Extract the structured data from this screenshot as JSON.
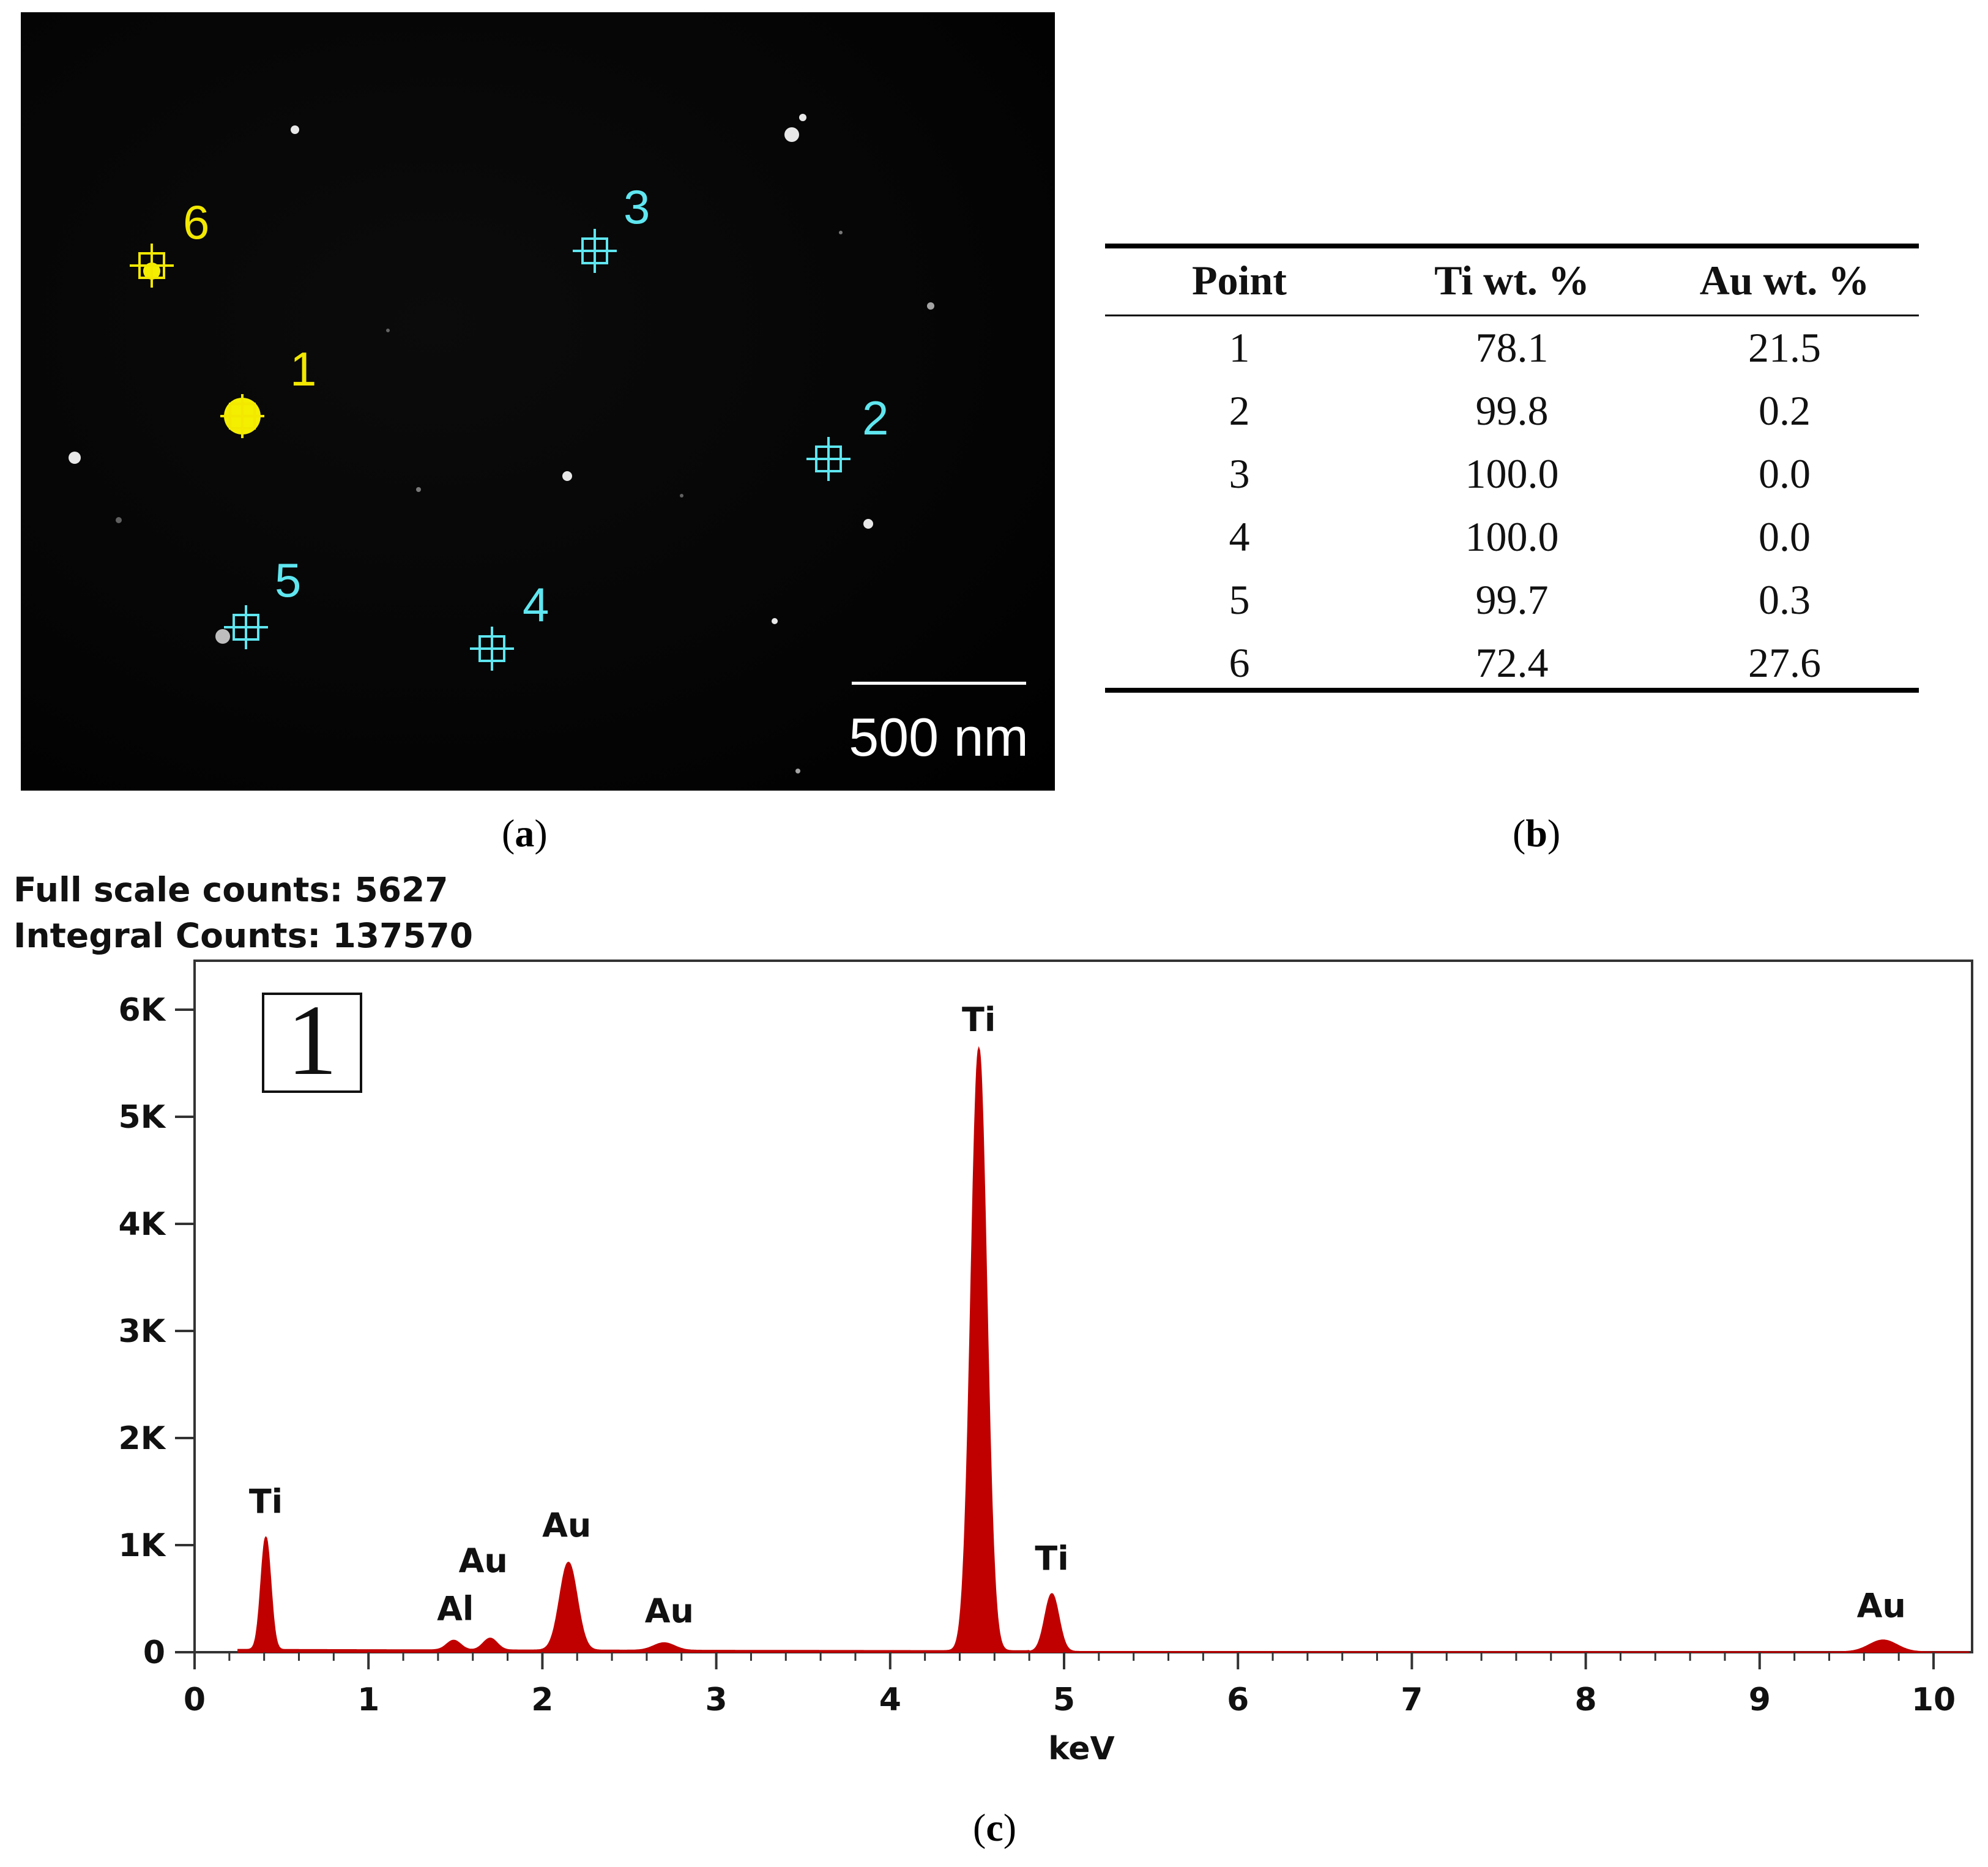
{
  "panel_a": {
    "caption": "a",
    "scale_bar_label": "500 nm",
    "markers": [
      {
        "label": "1",
        "color": "#f2e800"
      },
      {
        "label": "2",
        "color": "#5fe6f0"
      },
      {
        "label": "3",
        "color": "#5fe6f0"
      },
      {
        "label": "4",
        "color": "#5fe6f0"
      },
      {
        "label": "5",
        "color": "#5fe6f0"
      },
      {
        "label": "6",
        "color": "#f2e800"
      }
    ]
  },
  "panel_b": {
    "caption": "b",
    "headers": [
      "Point",
      "Ti wt. %",
      "Au wt. %"
    ],
    "rows": [
      [
        "1",
        "78.1",
        "21.5"
      ],
      [
        "2",
        "99.8",
        "0.2"
      ],
      [
        "3",
        "100.0",
        "0.0"
      ],
      [
        "4",
        "100.0",
        "0.0"
      ],
      [
        "5",
        "99.7",
        "0.3"
      ],
      [
        "6",
        "72.4",
        "27.6"
      ]
    ]
  },
  "panel_c": {
    "caption": "c",
    "full_scale_counts": "Full scale counts: 5627",
    "integral_counts": "Integral Counts: 137570",
    "inset_label": "1"
  },
  "chart_data": {
    "type": "area",
    "xlabel": "keV",
    "ylabel": "",
    "xlim": [
      0,
      10
    ],
    "ylim": [
      0,
      6000
    ],
    "x_ticks": [
      "0",
      "1",
      "2",
      "3",
      "4",
      "5",
      "6",
      "7",
      "8",
      "9",
      "10"
    ],
    "y_ticks": [
      "0",
      "1K",
      "2K",
      "3K",
      "4K",
      "5K",
      "6K"
    ],
    "series_color": "#c00000",
    "peaks": [
      {
        "element": "Ti",
        "x": 0.41,
        "y": 1050,
        "sigma": 0.028
      },
      {
        "element": "Al",
        "x": 1.49,
        "y": 90,
        "sigma": 0.04
      },
      {
        "element": "Au",
        "x": 1.7,
        "y": 110,
        "sigma": 0.04
      },
      {
        "element": "Au",
        "x": 2.15,
        "y": 820,
        "sigma": 0.05
      },
      {
        "element": "Au",
        "x": 2.7,
        "y": 70,
        "sigma": 0.06
      },
      {
        "element": "Ti",
        "x": 4.51,
        "y": 5627,
        "sigma": 0.045
      },
      {
        "element": "Ti",
        "x": 4.93,
        "y": 540,
        "sigma": 0.04
      },
      {
        "element": "Au",
        "x": 9.71,
        "y": 110,
        "sigma": 0.08
      }
    ],
    "peak_labels": [
      {
        "text": "Ti",
        "x": 0.41,
        "y": 1300
      },
      {
        "text": "Au",
        "x": 1.66,
        "y": 750
      },
      {
        "text": "Al",
        "x": 1.5,
        "y": 300
      },
      {
        "text": "Au",
        "x": 2.14,
        "y": 1080
      },
      {
        "text": "Au",
        "x": 2.73,
        "y": 280
      },
      {
        "text": "Ti",
        "x": 4.51,
        "y": 5800
      },
      {
        "text": "Ti",
        "x": 4.93,
        "y": 770
      },
      {
        "text": "Au",
        "x": 9.7,
        "y": 330
      }
    ]
  }
}
